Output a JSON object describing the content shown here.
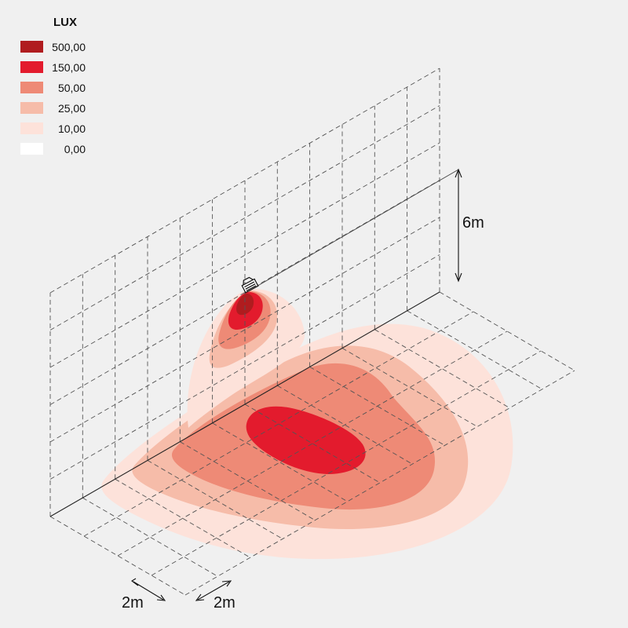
{
  "legend": {
    "title": "LUX",
    "items": [
      {
        "value": "500,00",
        "color": "#b01c1f"
      },
      {
        "value": "150,00",
        "color": "#e31b2d"
      },
      {
        "value": "50,00",
        "color": "#ee8a76"
      },
      {
        "value": "25,00",
        "color": "#f6bca9"
      },
      {
        "value": "10,00",
        "color": "#fde2da"
      },
      {
        "value": "0,00",
        "color": "#ffffff"
      }
    ]
  },
  "dimensions": {
    "height_label": "6m",
    "grid_x_label": "2m",
    "grid_y_label": "2m"
  },
  "colors": {
    "background": "#f0f0f0",
    "grid_line": "#555555",
    "edge_line": "#222222"
  }
}
